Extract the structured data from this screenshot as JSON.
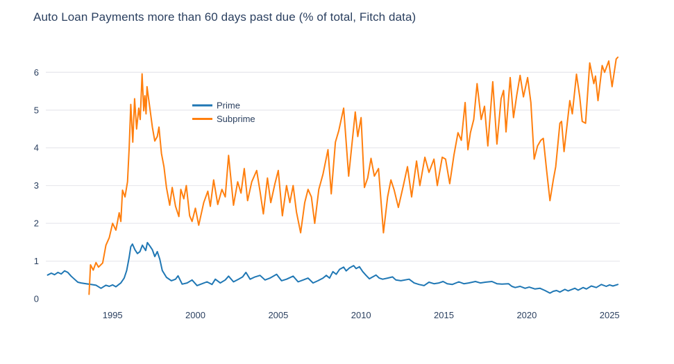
{
  "chart_data": {
    "type": "line",
    "title": "Auto Loan Payments more than 60 days past due (% of total, Fitch data)",
    "xlabel": "",
    "ylabel": "",
    "y_unit": "% of total",
    "x_unit": "year (decimal)",
    "xlim": [
      1990.97,
      2025.62
    ],
    "ylim": [
      0,
      6.6
    ],
    "xticks": [
      1995,
      2000,
      2005,
      2010,
      2015,
      2020,
      2025
    ],
    "yticks": [
      0,
      1,
      2,
      3,
      4,
      5,
      6
    ],
    "grid": "horizontal gridlines at integer y values 1-6, no axis lines",
    "legend_position": "inside plot, upper-left area",
    "colors": {
      "prime": "#1f77b4",
      "subprime": "#ff7f0e",
      "text": "#2a3f5f",
      "grid": "#e9e9ee",
      "background": "#ffffff"
    },
    "series": [
      {
        "name": "Prime",
        "color": "#1f77b4",
        "points": [
          [
            1991.08,
            0.63
          ],
          [
            1991.3,
            0.68
          ],
          [
            1991.5,
            0.64
          ],
          [
            1991.7,
            0.7
          ],
          [
            1991.9,
            0.66
          ],
          [
            1992.1,
            0.74
          ],
          [
            1992.3,
            0.7
          ],
          [
            1992.5,
            0.6
          ],
          [
            1992.7,
            0.52
          ],
          [
            1992.9,
            0.44
          ],
          [
            1993.1,
            0.42
          ],
          [
            1993.4,
            0.4
          ],
          [
            1993.7,
            0.38
          ],
          [
            1994.0,
            0.36
          ],
          [
            1994.3,
            0.28
          ],
          [
            1994.6,
            0.36
          ],
          [
            1994.8,
            0.33
          ],
          [
            1995.0,
            0.37
          ],
          [
            1995.2,
            0.32
          ],
          [
            1995.5,
            0.42
          ],
          [
            1995.7,
            0.55
          ],
          [
            1995.85,
            0.75
          ],
          [
            1996.0,
            1.1
          ],
          [
            1996.1,
            1.38
          ],
          [
            1996.2,
            1.45
          ],
          [
            1996.35,
            1.3
          ],
          [
            1996.5,
            1.2
          ],
          [
            1996.65,
            1.25
          ],
          [
            1996.8,
            1.42
          ],
          [
            1996.9,
            1.35
          ],
          [
            1997.0,
            1.28
          ],
          [
            1997.1,
            1.49
          ],
          [
            1997.25,
            1.4
          ],
          [
            1997.4,
            1.3
          ],
          [
            1997.55,
            1.12
          ],
          [
            1997.7,
            1.25
          ],
          [
            1997.85,
            1.05
          ],
          [
            1998.0,
            0.75
          ],
          [
            1998.25,
            0.57
          ],
          [
            1998.55,
            0.48
          ],
          [
            1998.8,
            0.52
          ],
          [
            1998.95,
            0.61
          ],
          [
            1999.2,
            0.39
          ],
          [
            1999.5,
            0.42
          ],
          [
            1999.8,
            0.5
          ],
          [
            2000.1,
            0.35
          ],
          [
            2000.4,
            0.4
          ],
          [
            2000.7,
            0.45
          ],
          [
            2001.0,
            0.38
          ],
          [
            2001.2,
            0.52
          ],
          [
            2001.5,
            0.42
          ],
          [
            2001.8,
            0.5
          ],
          [
            2002.0,
            0.6
          ],
          [
            2002.3,
            0.45
          ],
          [
            2002.6,
            0.52
          ],
          [
            2002.85,
            0.58
          ],
          [
            2003.05,
            0.7
          ],
          [
            2003.3,
            0.52
          ],
          [
            2003.6,
            0.58
          ],
          [
            2003.9,
            0.62
          ],
          [
            2004.2,
            0.5
          ],
          [
            2004.5,
            0.55
          ],
          [
            2004.9,
            0.65
          ],
          [
            2005.2,
            0.48
          ],
          [
            2005.5,
            0.52
          ],
          [
            2005.9,
            0.6
          ],
          [
            2006.2,
            0.45
          ],
          [
            2006.5,
            0.5
          ],
          [
            2006.8,
            0.55
          ],
          [
            2007.1,
            0.42
          ],
          [
            2007.4,
            0.48
          ],
          [
            2007.7,
            0.55
          ],
          [
            2007.9,
            0.62
          ],
          [
            2008.1,
            0.55
          ],
          [
            2008.3,
            0.72
          ],
          [
            2008.5,
            0.65
          ],
          [
            2008.7,
            0.78
          ],
          [
            2008.95,
            0.84
          ],
          [
            2009.1,
            0.74
          ],
          [
            2009.3,
            0.82
          ],
          [
            2009.55,
            0.88
          ],
          [
            2009.7,
            0.8
          ],
          [
            2009.9,
            0.85
          ],
          [
            2010.1,
            0.72
          ],
          [
            2010.3,
            0.62
          ],
          [
            2010.5,
            0.53
          ],
          [
            2010.7,
            0.58
          ],
          [
            2010.9,
            0.63
          ],
          [
            2011.1,
            0.55
          ],
          [
            2011.3,
            0.52
          ],
          [
            2011.6,
            0.55
          ],
          [
            2011.9,
            0.58
          ],
          [
            2012.1,
            0.5
          ],
          [
            2012.4,
            0.48
          ],
          [
            2012.9,
            0.52
          ],
          [
            2013.2,
            0.42
          ],
          [
            2013.5,
            0.38
          ],
          [
            2013.8,
            0.35
          ],
          [
            2014.1,
            0.44
          ],
          [
            2014.4,
            0.4
          ],
          [
            2014.7,
            0.42
          ],
          [
            2014.95,
            0.46
          ],
          [
            2015.2,
            0.4
          ],
          [
            2015.5,
            0.38
          ],
          [
            2015.9,
            0.45
          ],
          [
            2016.2,
            0.4
          ],
          [
            2016.5,
            0.42
          ],
          [
            2016.9,
            0.46
          ],
          [
            2017.2,
            0.42
          ],
          [
            2017.5,
            0.44
          ],
          [
            2017.9,
            0.46
          ],
          [
            2018.2,
            0.4
          ],
          [
            2018.5,
            0.39
          ],
          [
            2018.9,
            0.4
          ],
          [
            2019.1,
            0.33
          ],
          [
            2019.3,
            0.3
          ],
          [
            2019.6,
            0.33
          ],
          [
            2019.9,
            0.28
          ],
          [
            2020.15,
            0.31
          ],
          [
            2020.5,
            0.26
          ],
          [
            2020.8,
            0.28
          ],
          [
            2021.1,
            0.22
          ],
          [
            2021.4,
            0.15
          ],
          [
            2021.6,
            0.2
          ],
          [
            2021.8,
            0.22
          ],
          [
            2022.0,
            0.18
          ],
          [
            2022.3,
            0.25
          ],
          [
            2022.5,
            0.21
          ],
          [
            2022.9,
            0.28
          ],
          [
            2023.1,
            0.23
          ],
          [
            2023.4,
            0.3
          ],
          [
            2023.6,
            0.26
          ],
          [
            2023.9,
            0.34
          ],
          [
            2024.2,
            0.3
          ],
          [
            2024.5,
            0.38
          ],
          [
            2024.8,
            0.33
          ],
          [
            2025.0,
            0.37
          ],
          [
            2025.2,
            0.34
          ],
          [
            2025.5,
            0.38
          ]
        ]
      },
      {
        "name": "Subprime",
        "color": "#ff7f0e",
        "points": [
          [
            1993.58,
            0.12
          ],
          [
            1993.67,
            0.9
          ],
          [
            1993.83,
            0.76
          ],
          [
            1994.0,
            0.96
          ],
          [
            1994.15,
            0.84
          ],
          [
            1994.4,
            0.95
          ],
          [
            1994.6,
            1.42
          ],
          [
            1994.8,
            1.62
          ],
          [
            1995.0,
            2.0
          ],
          [
            1995.2,
            1.82
          ],
          [
            1995.4,
            2.28
          ],
          [
            1995.5,
            2.05
          ],
          [
            1995.6,
            2.88
          ],
          [
            1995.75,
            2.7
          ],
          [
            1995.9,
            3.1
          ],
          [
            1996.0,
            4.0
          ],
          [
            1996.1,
            5.15
          ],
          [
            1996.22,
            4.15
          ],
          [
            1996.33,
            5.3
          ],
          [
            1996.45,
            4.5
          ],
          [
            1996.58,
            5.05
          ],
          [
            1996.67,
            4.75
          ],
          [
            1996.78,
            5.96
          ],
          [
            1996.88,
            4.98
          ],
          [
            1996.95,
            5.38
          ],
          [
            1997.02,
            4.9
          ],
          [
            1997.08,
            5.62
          ],
          [
            1997.25,
            5.05
          ],
          [
            1997.4,
            4.55
          ],
          [
            1997.55,
            4.18
          ],
          [
            1997.7,
            4.3
          ],
          [
            1997.8,
            4.55
          ],
          [
            1997.95,
            3.85
          ],
          [
            1998.1,
            3.5
          ],
          [
            1998.25,
            2.95
          ],
          [
            1998.45,
            2.48
          ],
          [
            1998.6,
            2.95
          ],
          [
            1998.8,
            2.45
          ],
          [
            1999.0,
            2.18
          ],
          [
            1999.12,
            2.9
          ],
          [
            1999.3,
            2.65
          ],
          [
            1999.45,
            3.0
          ],
          [
            1999.65,
            2.2
          ],
          [
            1999.8,
            2.05
          ],
          [
            2000.0,
            2.4
          ],
          [
            2000.2,
            1.95
          ],
          [
            2000.5,
            2.55
          ],
          [
            2000.75,
            2.85
          ],
          [
            2000.9,
            2.45
          ],
          [
            2001.1,
            3.15
          ],
          [
            2001.35,
            2.5
          ],
          [
            2001.6,
            2.9
          ],
          [
            2001.8,
            2.7
          ],
          [
            2002.0,
            3.8
          ],
          [
            2002.3,
            2.48
          ],
          [
            2002.55,
            3.1
          ],
          [
            2002.75,
            2.8
          ],
          [
            2002.95,
            3.45
          ],
          [
            2003.15,
            2.6
          ],
          [
            2003.4,
            3.1
          ],
          [
            2003.7,
            3.4
          ],
          [
            2003.9,
            2.85
          ],
          [
            2004.1,
            2.25
          ],
          [
            2004.35,
            3.2
          ],
          [
            2004.55,
            2.55
          ],
          [
            2004.8,
            3.05
          ],
          [
            2005.0,
            3.4
          ],
          [
            2005.25,
            2.2
          ],
          [
            2005.5,
            3.0
          ],
          [
            2005.7,
            2.55
          ],
          [
            2005.9,
            3.0
          ],
          [
            2006.1,
            2.3
          ],
          [
            2006.35,
            1.75
          ],
          [
            2006.6,
            2.55
          ],
          [
            2006.8,
            2.9
          ],
          [
            2007.0,
            2.7
          ],
          [
            2007.2,
            2.0
          ],
          [
            2007.45,
            2.9
          ],
          [
            2007.7,
            3.3
          ],
          [
            2008.0,
            3.95
          ],
          [
            2008.2,
            2.78
          ],
          [
            2008.45,
            4.15
          ],
          [
            2008.65,
            4.45
          ],
          [
            2008.95,
            5.05
          ],
          [
            2009.25,
            3.25
          ],
          [
            2009.65,
            4.95
          ],
          [
            2009.8,
            4.3
          ],
          [
            2010.0,
            4.8
          ],
          [
            2010.2,
            2.95
          ],
          [
            2010.4,
            3.2
          ],
          [
            2010.6,
            3.72
          ],
          [
            2010.8,
            3.25
          ],
          [
            2011.05,
            3.45
          ],
          [
            2011.35,
            1.75
          ],
          [
            2011.6,
            2.7
          ],
          [
            2011.8,
            3.15
          ],
          [
            2012.0,
            2.88
          ],
          [
            2012.25,
            2.42
          ],
          [
            2012.55,
            3.0
          ],
          [
            2012.8,
            3.5
          ],
          [
            2013.05,
            2.7
          ],
          [
            2013.35,
            3.65
          ],
          [
            2013.55,
            3.0
          ],
          [
            2013.85,
            3.75
          ],
          [
            2014.1,
            3.35
          ],
          [
            2014.4,
            3.7
          ],
          [
            2014.6,
            3.0
          ],
          [
            2014.9,
            3.75
          ],
          [
            2015.1,
            3.7
          ],
          [
            2015.35,
            3.05
          ],
          [
            2015.6,
            3.8
          ],
          [
            2015.85,
            4.4
          ],
          [
            2016.05,
            4.2
          ],
          [
            2016.28,
            5.2
          ],
          [
            2016.45,
            3.95
          ],
          [
            2016.6,
            4.4
          ],
          [
            2016.8,
            4.75
          ],
          [
            2017.0,
            5.7
          ],
          [
            2017.25,
            4.75
          ],
          [
            2017.45,
            5.1
          ],
          [
            2017.65,
            4.05
          ],
          [
            2017.95,
            5.75
          ],
          [
            2018.2,
            4.1
          ],
          [
            2018.45,
            5.3
          ],
          [
            2018.6,
            5.52
          ],
          [
            2018.75,
            4.42
          ],
          [
            2019.0,
            5.86
          ],
          [
            2019.2,
            4.8
          ],
          [
            2019.4,
            5.4
          ],
          [
            2019.6,
            5.92
          ],
          [
            2019.8,
            5.35
          ],
          [
            2020.05,
            5.86
          ],
          [
            2020.25,
            5.2
          ],
          [
            2020.45,
            3.7
          ],
          [
            2020.65,
            4.05
          ],
          [
            2020.85,
            4.2
          ],
          [
            2021.0,
            4.25
          ],
          [
            2021.2,
            3.4
          ],
          [
            2021.4,
            2.6
          ],
          [
            2021.6,
            3.15
          ],
          [
            2021.75,
            3.5
          ],
          [
            2022.0,
            4.65
          ],
          [
            2022.1,
            4.7
          ],
          [
            2022.25,
            3.9
          ],
          [
            2022.6,
            5.25
          ],
          [
            2022.75,
            4.9
          ],
          [
            2023.0,
            5.95
          ],
          [
            2023.2,
            5.35
          ],
          [
            2023.35,
            4.7
          ],
          [
            2023.55,
            4.65
          ],
          [
            2023.8,
            6.25
          ],
          [
            2024.05,
            5.7
          ],
          [
            2024.15,
            5.9
          ],
          [
            2024.3,
            5.25
          ],
          [
            2024.55,
            6.18
          ],
          [
            2024.7,
            6.0
          ],
          [
            2024.95,
            6.3
          ],
          [
            2025.15,
            5.62
          ],
          [
            2025.4,
            6.35
          ],
          [
            2025.5,
            6.4
          ]
        ]
      }
    ]
  }
}
